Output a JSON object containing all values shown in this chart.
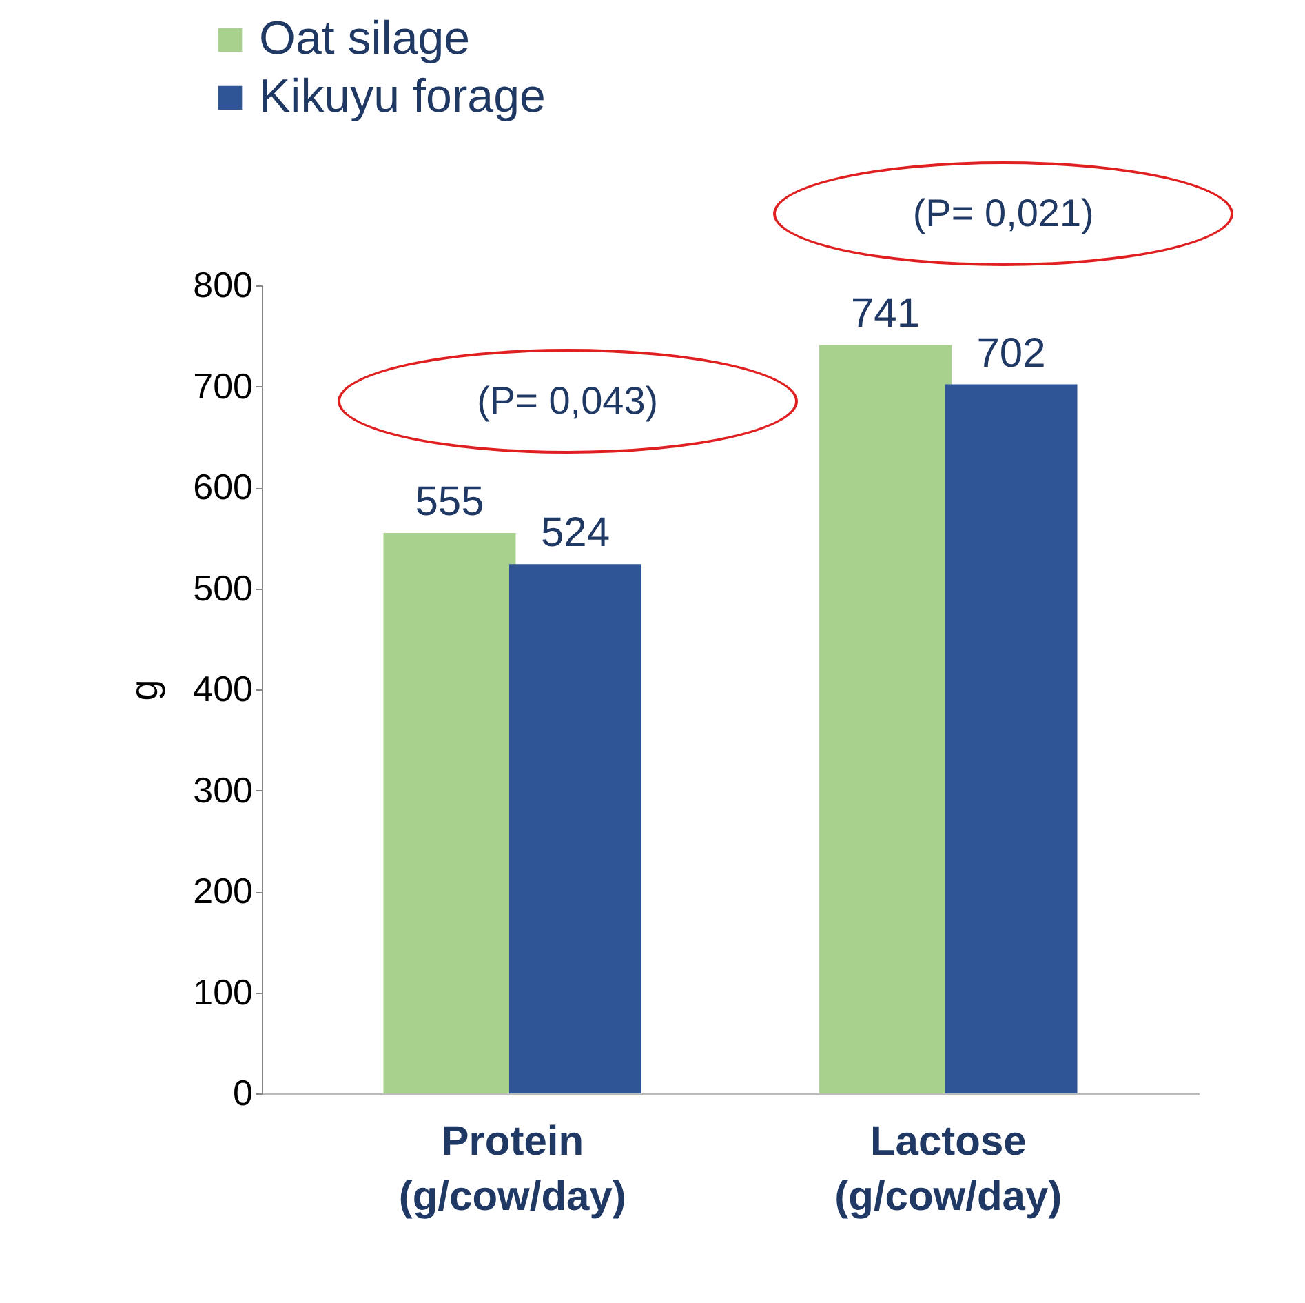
{
  "chart_data": {
    "type": "bar",
    "ylabel": "g",
    "categories": [
      "Protein\n(g/cow/day)",
      "Lactose\n(g/cow/day)"
    ],
    "series": [
      {
        "name": "Oat silage",
        "color": "#a9d18e",
        "values": [
          555,
          741
        ]
      },
      {
        "name": "Kikuyu forage",
        "color": "#2f5597",
        "values": [
          524,
          702
        ]
      }
    ],
    "ylim": [
      0,
      800
    ],
    "yticks": [
      0,
      100,
      200,
      300,
      400,
      500,
      600,
      700,
      800
    ],
    "data_labels": true,
    "legend": "top left",
    "grid": false,
    "annotations": [
      "(P= 0,043)",
      "(P= 0,021)"
    ]
  }
}
